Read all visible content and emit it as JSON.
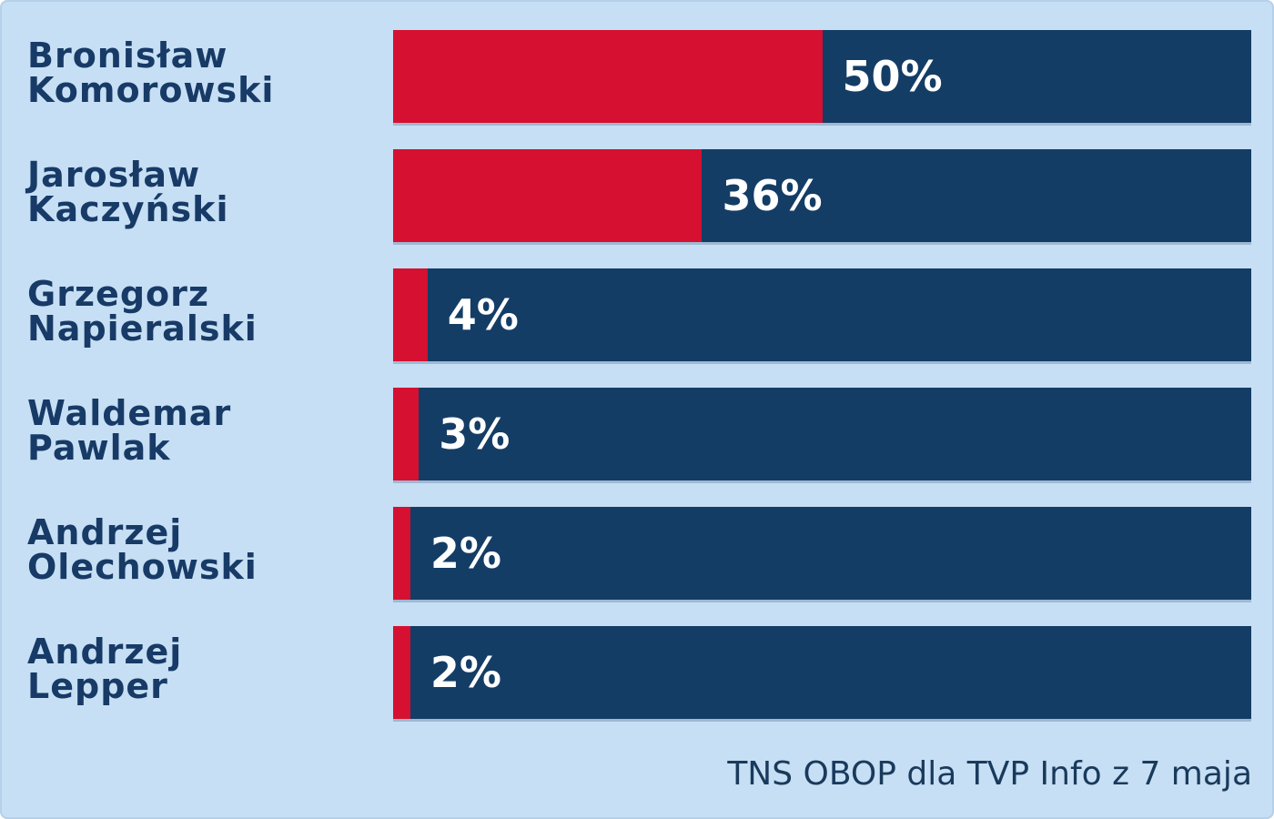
{
  "chart_data": {
    "type": "bar",
    "orientation": "horizontal",
    "categories": [
      "Bronisław Komorowski",
      "Jarosław Kaczyński",
      "Grzegorz Napieralski",
      "Waldemar Pawlak",
      "Andrzej Olechowski",
      "Andrzej Lepper"
    ],
    "values": [
      50,
      36,
      4,
      3,
      2,
      2
    ],
    "value_labels": [
      "50%",
      "36%",
      "4%",
      "3%",
      "2%",
      "2%"
    ],
    "color": "#d51030",
    "track_color": "#143d66",
    "xlim": [
      0,
      100
    ],
    "source": "TNS OBOP dla TVP Info z 7 maja"
  }
}
